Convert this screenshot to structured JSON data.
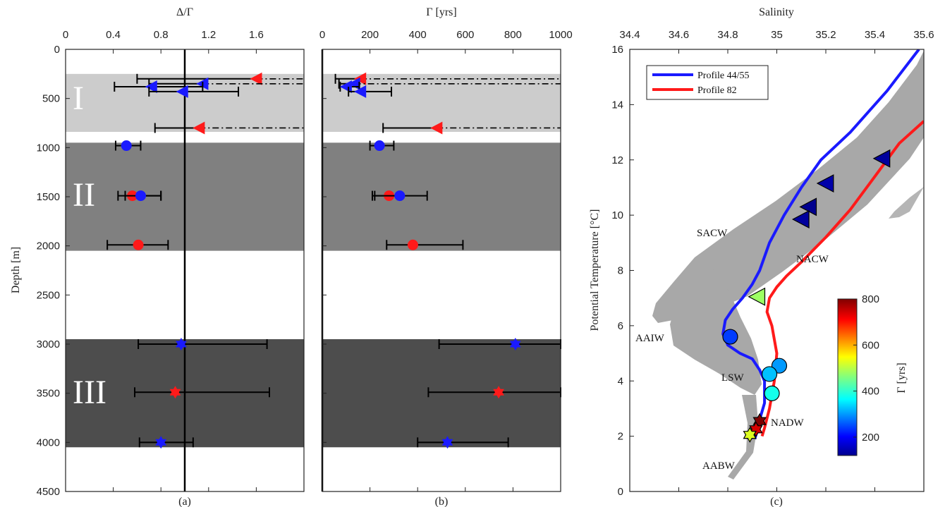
{
  "colors": {
    "red": "#ff1a1a",
    "blue": "#1a1aff",
    "light_band": "#cccccc",
    "mid_band": "#808080",
    "dark_band": "#4d4d4d",
    "scatter": "#a8a8a8"
  },
  "chart_data": [
    {
      "type": "scatter",
      "title": "Δ/Γ",
      "subplot_label": "(a)",
      "ylabel": "Depth [m]",
      "xlim": [
        0,
        2
      ],
      "ylim": [
        0,
        4500
      ],
      "y_inverted": true,
      "xticks": [
        "0",
        "0.4",
        "0.8",
        "1.2",
        "1.6"
      ],
      "yticks": [
        "0",
        "500",
        "1000",
        "1500",
        "2000",
        "2500",
        "3000",
        "3500",
        "4000",
        "4500"
      ],
      "reference_line_x": 1,
      "bands": [
        {
          "label": "I",
          "from": 250,
          "to": 840,
          "shade": "light"
        },
        {
          "label": "II",
          "from": 950,
          "to": 2050,
          "shade": "mid"
        },
        {
          "label": "III",
          "from": 2950,
          "to": 4050,
          "shade": "dark"
        }
      ],
      "points": [
        {
          "depth": 300,
          "value": 1.6,
          "lo": 0.6,
          "hi": 2.0,
          "open_ended": true,
          "marker": "triangle",
          "color": "red"
        },
        {
          "depth": 350,
          "value": 1.15,
          "lo": 0.7,
          "hi": 2.0,
          "open_ended": true,
          "marker": "triangle",
          "color": "blue"
        },
        {
          "depth": 380,
          "value": 0.72,
          "lo": 0.41,
          "hi": 1.15,
          "marker": "triangle",
          "color": "blue"
        },
        {
          "depth": 430,
          "value": 0.98,
          "lo": 0.7,
          "hi": 1.45,
          "marker": "triangle",
          "color": "blue"
        },
        {
          "depth": 800,
          "value": 1.12,
          "lo": 0.75,
          "hi": 2.0,
          "open_ended": true,
          "marker": "triangle",
          "color": "red"
        },
        {
          "depth": 980,
          "value": 0.51,
          "lo": 0.42,
          "hi": 0.63,
          "marker": "circle",
          "color": "blue"
        },
        {
          "depth": 1490,
          "value": 0.56,
          "lo": 0.5,
          "hi": 0.8,
          "marker": "circle",
          "color": "red"
        },
        {
          "depth": 1490,
          "value": 0.63,
          "lo": 0.44,
          "hi": 0.8,
          "marker": "circle",
          "color": "blue"
        },
        {
          "depth": 1990,
          "value": 0.61,
          "lo": 0.35,
          "hi": 0.86,
          "marker": "circle",
          "color": "red"
        },
        {
          "depth": 3000,
          "value": 0.97,
          "lo": 0.61,
          "hi": 1.69,
          "marker": "star",
          "color": "blue"
        },
        {
          "depth": 3490,
          "value": 0.92,
          "lo": 0.58,
          "hi": 1.71,
          "marker": "star",
          "color": "red"
        },
        {
          "depth": 4000,
          "value": 0.8,
          "lo": 0.62,
          "hi": 1.07,
          "marker": "star",
          "color": "blue"
        }
      ]
    },
    {
      "type": "scatter",
      "title": "Γ [yrs]",
      "subplot_label": "(b)",
      "xlim": [
        0,
        1000
      ],
      "ylim": [
        0,
        4500
      ],
      "y_inverted": true,
      "xticks": [
        "0",
        "200",
        "400",
        "600",
        "800",
        "1000"
      ],
      "points": [
        {
          "depth": 300,
          "value": 160,
          "lo": 55,
          "hi": 1000,
          "open_ended": true,
          "marker": "triangle",
          "color": "red"
        },
        {
          "depth": 350,
          "value": 135,
          "lo": 70,
          "hi": 1000,
          "open_ended": true,
          "marker": "triangle",
          "color": "blue"
        },
        {
          "depth": 380,
          "value": 100,
          "lo": 75,
          "hi": 155,
          "marker": "triangle",
          "color": "blue"
        },
        {
          "depth": 430,
          "value": 160,
          "lo": 110,
          "hi": 290,
          "marker": "triangle",
          "color": "blue"
        },
        {
          "depth": 800,
          "value": 480,
          "lo": 255,
          "hi": 1000,
          "open_ended": true,
          "marker": "triangle",
          "color": "red"
        },
        {
          "depth": 980,
          "value": 240,
          "lo": 200,
          "hi": 300,
          "marker": "circle",
          "color": "blue"
        },
        {
          "depth": 1490,
          "value": 280,
          "lo": 210,
          "hi": 330,
          "marker": "circle",
          "color": "red"
        },
        {
          "depth": 1490,
          "value": 325,
          "lo": 220,
          "hi": 440,
          "marker": "circle",
          "color": "blue"
        },
        {
          "depth": 1990,
          "value": 380,
          "lo": 270,
          "hi": 590,
          "marker": "circle",
          "color": "red"
        },
        {
          "depth": 3000,
          "value": 810,
          "lo": 490,
          "hi": 1000,
          "marker": "star",
          "color": "blue"
        },
        {
          "depth": 3490,
          "value": 740,
          "lo": 445,
          "hi": 1000,
          "marker": "star",
          "color": "red"
        },
        {
          "depth": 4000,
          "value": 525,
          "lo": 400,
          "hi": 780,
          "marker": "star",
          "color": "blue"
        }
      ]
    },
    {
      "type": "line",
      "title": "Salinity",
      "subplot_label": "(c)",
      "ylabel": "Potential Temperature [°C]",
      "xlim": [
        34.4,
        35.6
      ],
      "ylim": [
        0,
        16
      ],
      "xticks": [
        "34.4",
        "34.6",
        "34.8",
        "35",
        "35.2",
        "35.4",
        "35.6"
      ],
      "yticks": [
        "0",
        "2",
        "4",
        "6",
        "8",
        "10",
        "12",
        "14",
        "16"
      ],
      "series": [
        {
          "name": "Profile 44/55",
          "color": "blue",
          "x": [
            35.58,
            35.45,
            35.3,
            35.18,
            35.1,
            35.03,
            34.97,
            34.93,
            34.9,
            34.86,
            34.82,
            34.79,
            34.78,
            34.8,
            34.85,
            34.9,
            34.93,
            34.95,
            34.95,
            34.93,
            34.92,
            34.91
          ],
          "y": [
            16,
            14.5,
            13,
            12,
            11,
            10,
            9,
            8,
            7.5,
            7,
            6.6,
            6.2,
            5.7,
            5.3,
            5.0,
            4.8,
            4.4,
            4.0,
            3.2,
            2.6,
            2.2,
            1.9
          ]
        },
        {
          "name": "Profile 82",
          "color": "red",
          "x": [
            35.6,
            35.5,
            35.4,
            35.3,
            35.2,
            35.1,
            35.04,
            35.0,
            34.97,
            34.96,
            34.98,
            35.0,
            34.99,
            34.97,
            34.95,
            34.94
          ],
          "y": [
            13.4,
            12.6,
            11.4,
            10.2,
            9.2,
            8.3,
            7.8,
            7.4,
            7.0,
            6.5,
            6.0,
            5.0,
            4.0,
            3.0,
            2.3,
            2.0
          ]
        }
      ],
      "markers": [
        {
          "salinity": 35.43,
          "temp": 12.05,
          "marker": "triangle",
          "age": 130
        },
        {
          "salinity": 35.2,
          "temp": 11.15,
          "marker": "triangle",
          "age": 140
        },
        {
          "salinity": 35.13,
          "temp": 10.3,
          "marker": "triangle",
          "age": 110
        },
        {
          "salinity": 35.1,
          "temp": 9.85,
          "marker": "triangle",
          "age": 130
        },
        {
          "salinity": 34.92,
          "temp": 7.05,
          "marker": "triangle",
          "age": 480
        },
        {
          "salinity": 34.81,
          "temp": 5.6,
          "marker": "circle",
          "age": 240
        },
        {
          "salinity": 35.01,
          "temp": 4.55,
          "marker": "circle",
          "age": 300
        },
        {
          "salinity": 34.97,
          "temp": 4.25,
          "marker": "circle",
          "age": 325
        },
        {
          "salinity": 34.98,
          "temp": 3.55,
          "marker": "circle",
          "age": 380
        },
        {
          "salinity": 34.93,
          "temp": 2.55,
          "marker": "star",
          "age": 810
        },
        {
          "salinity": 34.915,
          "temp": 2.25,
          "marker": "star",
          "age": 740
        },
        {
          "salinity": 34.89,
          "temp": 2.05,
          "marker": "star",
          "age": 525
        }
      ],
      "annotations": [
        "SACW",
        "NACW",
        "AAIW",
        "LSW",
        "NADW",
        "AABW"
      ],
      "colorbar": {
        "label": "Γ [yrs]",
        "range": [
          120,
          800
        ],
        "ticks": [
          "200",
          "400",
          "600",
          "800"
        ]
      },
      "legend_position": "top-left"
    }
  ]
}
